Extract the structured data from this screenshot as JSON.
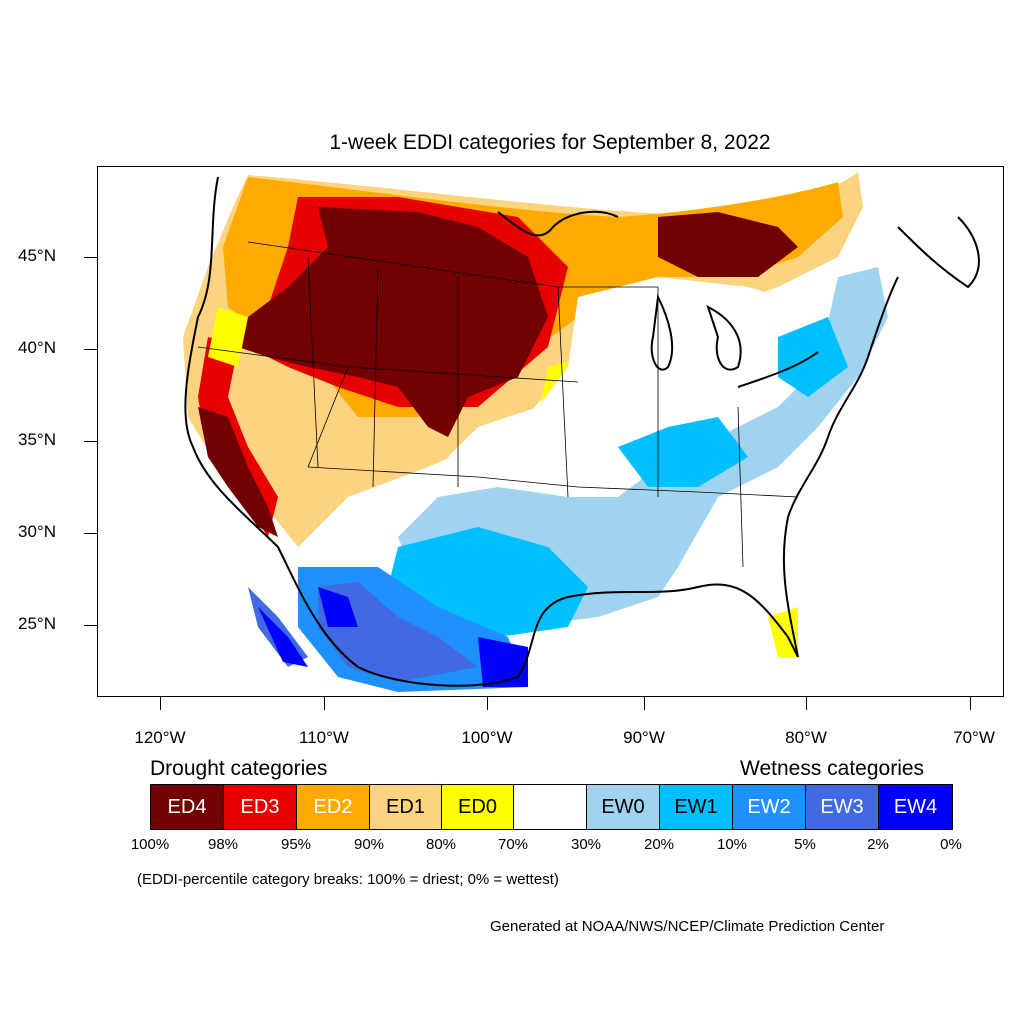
{
  "map": {
    "title": "1-week EDDI categories for September 8, 2022",
    "lat_labels": [
      "45°N",
      "40°N",
      "35°N",
      "30°N",
      "25°N"
    ],
    "lon_labels": [
      "120°W",
      "110°W",
      "100°W",
      "90°W",
      "80°W",
      "70°W"
    ],
    "region": "Contiguous United States with parts of Canada and Mexico"
  },
  "legend": {
    "drought_heading": "Drought categories",
    "wetness_heading": "Wetness categories",
    "categories": [
      {
        "label": "ED4",
        "color": "#730000",
        "text_color": "#ffffff"
      },
      {
        "label": "ED3",
        "color": "#e60000",
        "text_color": "#ffffff"
      },
      {
        "label": "ED2",
        "color": "#ffaa00",
        "text_color": "#ffffff"
      },
      {
        "label": "ED1",
        "color": "#fcd37f",
        "text_color": "#000000"
      },
      {
        "label": "ED0",
        "color": "#ffff00",
        "text_color": "#000000"
      },
      {
        "label": "",
        "color": "#ffffff",
        "text_color": "#000000"
      },
      {
        "label": "EW0",
        "color": "#9fd3f0",
        "text_color": "#000000"
      },
      {
        "label": "EW1",
        "color": "#00bfff",
        "text_color": "#000000"
      },
      {
        "label": "EW2",
        "color": "#1e90ff",
        "text_color": "#ffffff"
      },
      {
        "label": "EW3",
        "color": "#4169e1",
        "text_color": "#ffffff"
      },
      {
        "label": "EW4",
        "color": "#0000ff",
        "text_color": "#ffffff"
      }
    ],
    "breaks": [
      "100%",
      "98%",
      "95%",
      "90%",
      "80%",
      "70%",
      "30%",
      "20%",
      "10%",
      "5%",
      "2%",
      "0%"
    ]
  },
  "notes": {
    "breaks_note": "(EDDI-percentile category breaks: 100% = driest; 0% = wettest)",
    "credit": "Generated at NOAA/NWS/NCEP/Climate Prediction Center"
  }
}
